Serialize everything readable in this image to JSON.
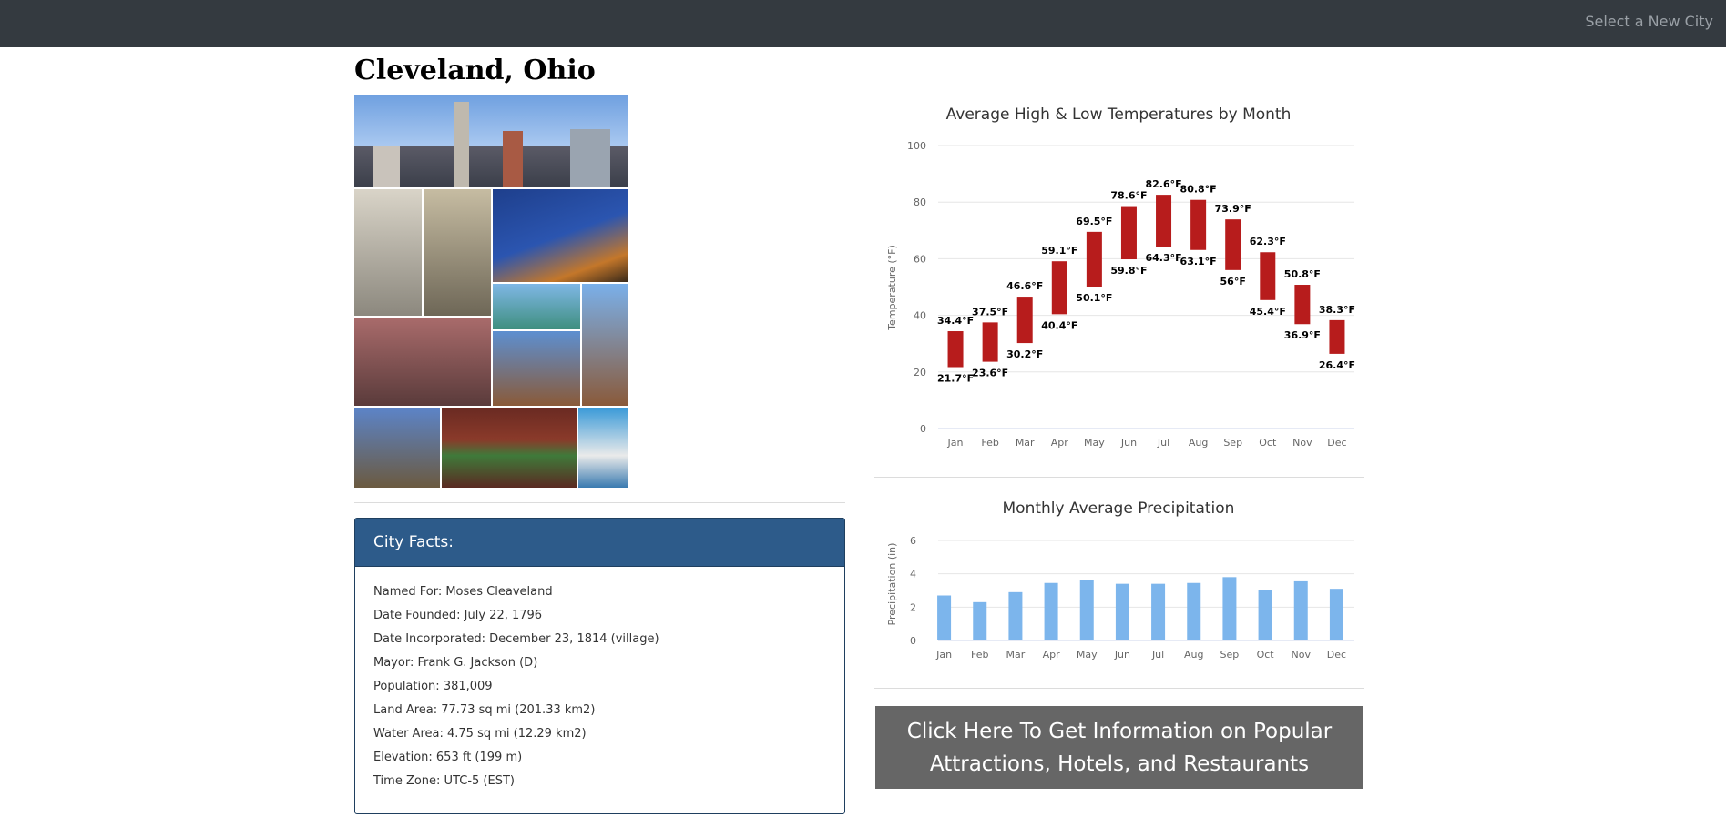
{
  "nav": {
    "select_city": "Select a New City"
  },
  "city": {
    "title": "Cleveland, Ohio"
  },
  "facts": {
    "header": "City Facts:",
    "items": [
      "Named For: Moses Cleaveland",
      "Date Founded: July 22, 1796",
      "Date Incorporated: December 23, 1814 (village)",
      "Mayor: Frank G. Jackson (D)",
      "Population: 381,009",
      "Land Area: 77.73 sq mi (201.33 km2)",
      "Water Area: 4.75 sq mi (12.29 km2)",
      "Elevation: 653 ft (199 m)",
      "Time Zone: UTC-5 (EST)"
    ]
  },
  "cta": {
    "label": "Click Here To Get Information on Popular Attractions, Hotels, and Restaurants"
  },
  "colors": {
    "temp_bar": "#b71c1c",
    "precip_bar": "#7cb5ec",
    "facts_header": "#2d5b8a",
    "nav": "#343a40",
    "cta": "#666666"
  },
  "chart_data": [
    {
      "type": "bar",
      "title": "Average High & Low Temperatures by Month",
      "ylabel": "Temperature (°F)",
      "xlabel": "",
      "categories": [
        "Jan",
        "Feb",
        "Mar",
        "Apr",
        "May",
        "Jun",
        "Jul",
        "Aug",
        "Sep",
        "Oct",
        "Nov",
        "Dec"
      ],
      "series": [
        {
          "low": [
            21.7,
            23.6,
            30.2,
            40.4,
            50.1,
            59.8,
            64.3,
            63.1,
            56,
            45.4,
            36.9,
            26.4
          ],
          "high": [
            34.4,
            37.5,
            46.6,
            59.1,
            69.5,
            78.6,
            82.6,
            80.8,
            73.9,
            62.3,
            50.8,
            38.3
          ]
        }
      ],
      "labels_high": [
        "34.4°F",
        "37.5°F",
        "46.6°F",
        "59.1°F",
        "69.5°F",
        "78.6°F",
        "82.6°F",
        "80.8°F",
        "73.9°F",
        "62.3°F",
        "50.8°F",
        "38.3°F"
      ],
      "labels_low": [
        "21.7°F",
        "23.6°F",
        "30.2°F",
        "40.4°F",
        "50.1°F",
        "59.8°F",
        "64.3°F",
        "63.1°F",
        "56°F",
        "45.4°F",
        "36.9°F",
        "26.4°F"
      ],
      "yticks": [
        "0",
        "20",
        "40",
        "60",
        "80",
        "100"
      ],
      "ylim": [
        0,
        100
      ],
      "grid": true
    },
    {
      "type": "bar",
      "title": "Monthly Average Precipitation",
      "ylabel": "Precipitation (in)",
      "xlabel": "",
      "categories": [
        "Jan",
        "Feb",
        "Mar",
        "Apr",
        "May",
        "Jun",
        "Jul",
        "Aug",
        "Sep",
        "Oct",
        "Nov",
        "Dec"
      ],
      "values": [
        2.7,
        2.3,
        2.9,
        3.45,
        3.6,
        3.4,
        3.4,
        3.45,
        3.8,
        3.0,
        3.55,
        3.1
      ],
      "yticks": [
        "0",
        "2",
        "4",
        "6"
      ],
      "ylim": [
        0,
        6
      ],
      "grid": true
    }
  ]
}
